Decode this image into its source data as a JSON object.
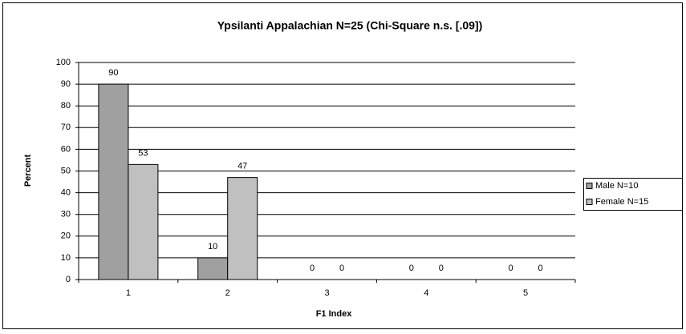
{
  "chart_data": {
    "type": "bar",
    "title": "Ypsilanti  Appalachian  N=25  (Chi-Square  n.s.  [.09])",
    "x_label": "F1  Index",
    "y_label": "Percent",
    "categories": [
      "1",
      "2",
      "3",
      "4",
      "5"
    ],
    "series": [
      {
        "name": "Male N=10",
        "color": "#a0a0a0",
        "values": [
          90,
          10,
          0,
          0,
          0
        ]
      },
      {
        "name": "Female N=15",
        "color": "#c0c0c0",
        "values": [
          53,
          47,
          0,
          0,
          0
        ]
      }
    ],
    "ylim": [
      0,
      100
    ],
    "yticks": [
      0,
      10,
      20,
      30,
      40,
      50,
      60,
      70,
      80,
      90,
      100
    ],
    "grid": true,
    "legend": "right"
  }
}
